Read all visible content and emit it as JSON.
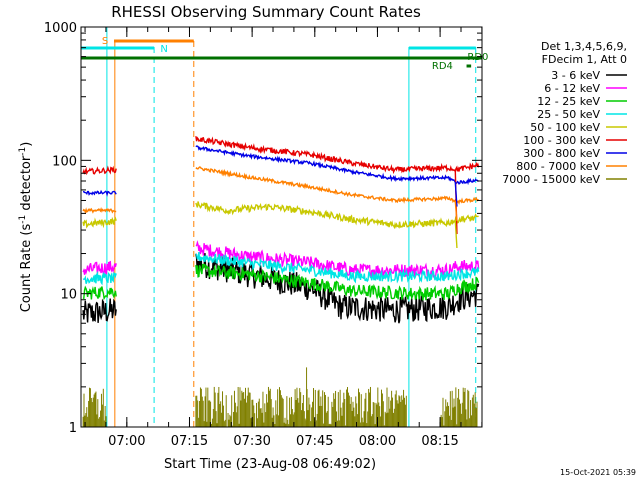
{
  "chart_data": {
    "type": "line",
    "title": "RHESSI Observing Summary Count Rates",
    "xlabel": "Start Time (23-Aug-08 06:49:02)",
    "ylabel_parts": [
      "Count Rate (s",
      "-1",
      " detector",
      "-1",
      ")"
    ],
    "scale": "log",
    "ylim": [
      1,
      1000
    ],
    "xlim_minutes": [
      0,
      96
    ],
    "x_ticks": [
      {
        "label": "07:00",
        "minute": 10.97
      },
      {
        "label": "07:15",
        "minute": 25.97
      },
      {
        "label": "07:30",
        "minute": 40.97
      },
      {
        "label": "07:45",
        "minute": 55.97
      },
      {
        "label": "08:00",
        "minute": 70.97
      },
      {
        "label": "08:15",
        "minute": 85.97
      }
    ],
    "y_ticks": [
      {
        "label": "1",
        "value": 1
      },
      {
        "label": "10",
        "value": 10
      },
      {
        "label": "100",
        "value": 100
      },
      {
        "label": "1000",
        "value": 1000
      }
    ],
    "legend_header": [
      "Det 1,3,4,5,6,9,",
      "FDecim 1, Att 0"
    ],
    "legend_placement": "right",
    "grid": false,
    "data_gap_minutes": [
      25,
      27.5
    ],
    "series": [
      {
        "name": "3 - 6 keV",
        "color": "#000000",
        "points": [
          [
            0.5,
            7
          ],
          [
            8.5,
            7.5
          ],
          [
            27.5,
            17
          ],
          [
            45,
            13
          ],
          [
            55,
            11
          ],
          [
            62,
            8
          ],
          [
            75,
            7.5
          ],
          [
            88,
            8
          ],
          [
            90,
            9
          ],
          [
            95,
            10
          ]
        ],
        "noise": 0.1
      },
      {
        "name": "6 - 12 keV",
        "color": "#ff00ff",
        "points": [
          [
            0.5,
            15
          ],
          [
            8.5,
            16
          ],
          [
            27.5,
            22
          ],
          [
            40,
            19
          ],
          [
            55,
            17
          ],
          [
            65,
            15
          ],
          [
            80,
            15
          ],
          [
            88,
            15
          ],
          [
            90,
            16
          ],
          [
            95,
            16
          ]
        ],
        "noise": 0.05
      },
      {
        "name": "12 - 25 keV",
        "color": "#00cc00",
        "points": [
          [
            0.5,
            10
          ],
          [
            8.5,
            10.5
          ],
          [
            27.5,
            15
          ],
          [
            40,
            14
          ],
          [
            55,
            12
          ],
          [
            65,
            10.5
          ],
          [
            80,
            10
          ],
          [
            88,
            10
          ],
          [
            90,
            11
          ],
          [
            95,
            12
          ]
        ],
        "noise": 0.05
      },
      {
        "name": "25 - 50 keV",
        "color": "#00e5e5",
        "points": [
          [
            0.5,
            13
          ],
          [
            8.5,
            13
          ],
          [
            27.5,
            19
          ],
          [
            40,
            17
          ],
          [
            55,
            15
          ],
          [
            65,
            13.5
          ],
          [
            80,
            13.5
          ],
          [
            88,
            13.5
          ],
          [
            90,
            14
          ],
          [
            95,
            14.5
          ]
        ],
        "noise": 0.04
      },
      {
        "name": "50 - 100 keV",
        "color": "#c8c800",
        "points": [
          [
            0.5,
            33
          ],
          [
            8.5,
            35
          ],
          [
            27.5,
            47
          ],
          [
            35,
            42
          ],
          [
            45,
            45
          ],
          [
            55,
            41
          ],
          [
            65,
            36
          ],
          [
            75,
            33
          ],
          [
            88,
            34
          ],
          [
            90,
            36
          ],
          [
            95,
            37
          ]
        ],
        "noise": 0.025
      },
      {
        "name": "100 - 300 keV",
        "color": "#e60000",
        "points": [
          [
            0.5,
            82
          ],
          [
            8.5,
            85
          ],
          [
            27.5,
            145
          ],
          [
            40,
            125
          ],
          [
            55,
            110
          ],
          [
            65,
            95
          ],
          [
            75,
            85
          ],
          [
            88,
            88
          ],
          [
            90,
            85
          ],
          [
            95,
            92
          ]
        ],
        "noise": 0.02
      },
      {
        "name": "300 - 800 keV",
        "color": "#0000e6",
        "points": [
          [
            0.5,
            57
          ],
          [
            8.5,
            57
          ],
          [
            27.5,
            125
          ],
          [
            40,
            108
          ],
          [
            55,
            95
          ],
          [
            65,
            82
          ],
          [
            75,
            73
          ],
          [
            88,
            74
          ],
          [
            90,
            68
          ],
          [
            95,
            71
          ]
        ],
        "noise": 0.012
      },
      {
        "name": "800 - 7000 keV",
        "color": "#ff8000",
        "points": [
          [
            0.5,
            42
          ],
          [
            8.5,
            42
          ],
          [
            27.5,
            88
          ],
          [
            40,
            75
          ],
          [
            55,
            63
          ],
          [
            65,
            55
          ],
          [
            75,
            50
          ],
          [
            88,
            52
          ],
          [
            90,
            49
          ],
          [
            95,
            51
          ]
        ],
        "noise": 0.012
      },
      {
        "name": "7000 - 15000 keV",
        "color": "#808000",
        "points": [],
        "noise": 0
      }
    ],
    "annotations": {
      "s_label": "S",
      "n_label": "N",
      "rd0_label": "RD0",
      "rd4_label": "RD4"
    },
    "footer_date": "15-Oct-2021 05:39"
  }
}
